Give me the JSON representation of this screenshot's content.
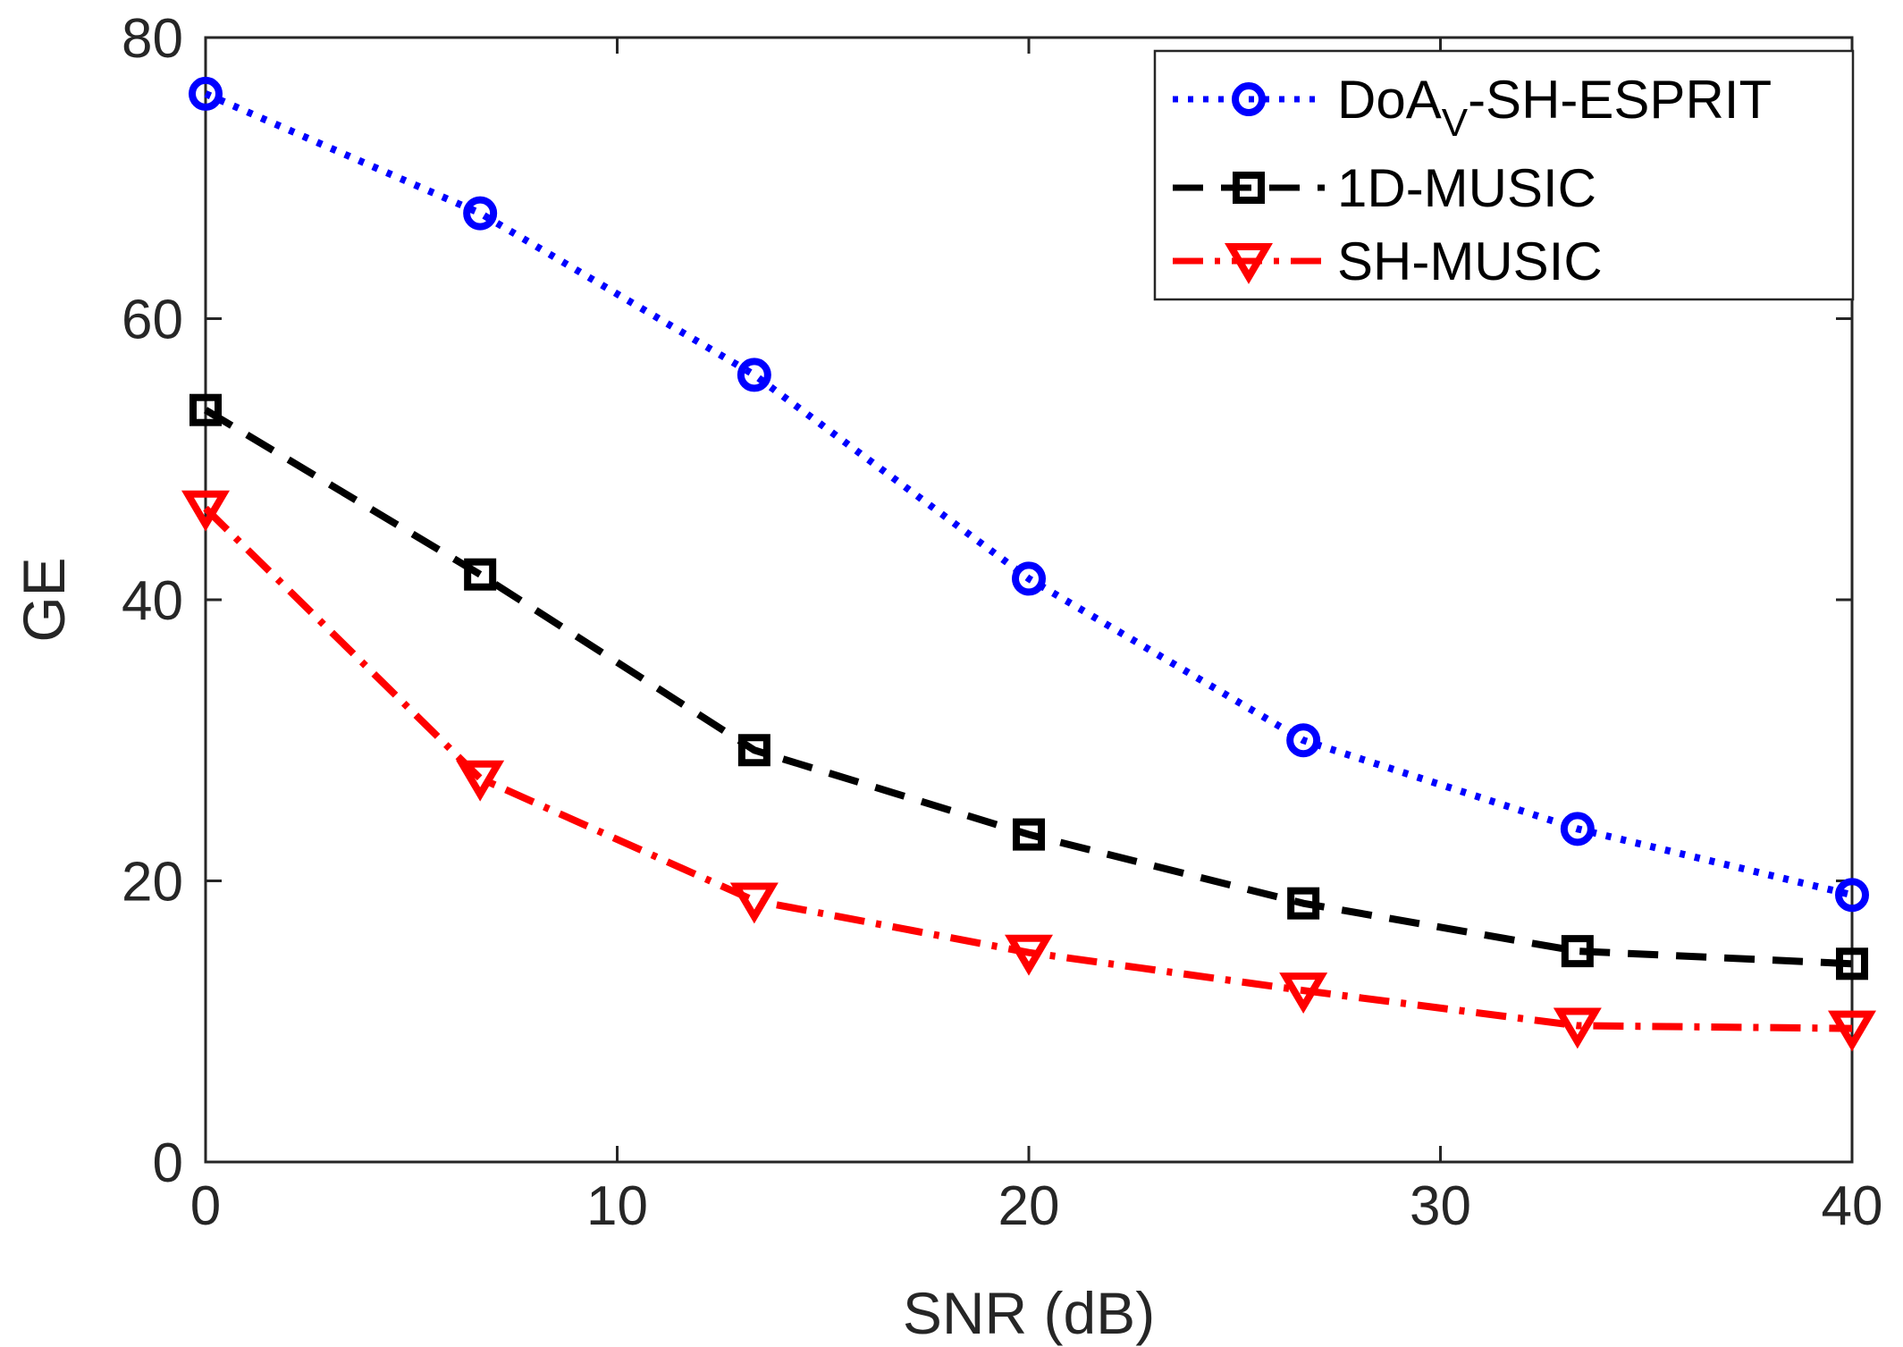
{
  "chart_data": {
    "type": "line",
    "title": "",
    "xlabel": "SNR (dB)",
    "ylabel": "GE",
    "xlim": [
      0,
      40
    ],
    "ylim": [
      0,
      80
    ],
    "xticks": [
      0,
      10,
      20,
      30,
      40
    ],
    "yticks": [
      0,
      20,
      40,
      60,
      80
    ],
    "x": [
      0,
      6.67,
      13.33,
      20,
      26.67,
      33.33,
      40
    ],
    "grid": false,
    "legend_position": "top-right",
    "series": [
      {
        "name": "DoA_V-SH-ESPRIT",
        "legend_main": "DoA",
        "legend_sub": "V",
        "legend_rest": "-SH-ESPRIT",
        "color": "#0000ff",
        "line_style": "dotted",
        "marker": "circle",
        "values": [
          76,
          67.5,
          56,
          41.5,
          30,
          23.7,
          19
        ]
      },
      {
        "name": "1D-MUSIC",
        "color": "#000000",
        "line_style": "dashed",
        "marker": "square",
        "values": [
          53.5,
          41.8,
          29.3,
          23.3,
          18.4,
          15,
          14.1
        ]
      },
      {
        "name": "SH-MUSIC",
        "color": "#ff0000",
        "line_style": "dash-dot",
        "marker": "triangle-down",
        "values": [
          46.5,
          27.3,
          18.6,
          14.9,
          12.2,
          9.7,
          9.5
        ]
      }
    ]
  }
}
